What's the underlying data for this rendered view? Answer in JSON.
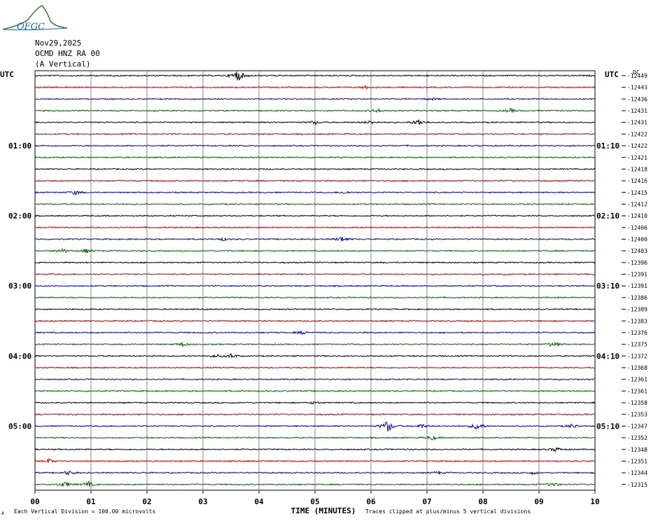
{
  "header": {
    "date": "Nov29,2025",
    "station": "OCMD HNZ RA 00",
    "component": "(A Vertical)",
    "logo_text": "OFGC"
  },
  "chart_data": {
    "type": "line",
    "title": "",
    "xlabel": "TIME (MINUTES)",
    "x_ticks": [
      "00",
      "01",
      "02",
      "03",
      "04",
      "05",
      "06",
      "07",
      "08",
      "09",
      "10"
    ],
    "xlim": [
      0,
      10
    ],
    "left_axis_label": "UTC",
    "right_axis_label": "UTC",
    "left_time_labels": [
      {
        "row": 6,
        "label": "01:00"
      },
      {
        "row": 12,
        "label": "02:00"
      },
      {
        "row": 18,
        "label": "03:00"
      },
      {
        "row": 24,
        "label": "04:00"
      },
      {
        "row": 30,
        "label": "05:00"
      }
    ],
    "right_time_labels": [
      {
        "row": 6,
        "label": "01:10"
      },
      {
        "row": 12,
        "label": "02:10"
      },
      {
        "row": 18,
        "label": "03:10"
      },
      {
        "row": 24,
        "label": "04:10"
      },
      {
        "row": 30,
        "label": "05:10"
      }
    ],
    "right_top_label": "DC",
    "trace_colors": [
      "#000000",
      "#cc0000",
      "#0000cc",
      "#006600"
    ],
    "trace_dc_values": [
      "-12449",
      "-12443",
      "-12436",
      "-12431",
      "-12431",
      "-12422",
      "-12422",
      "-12421",
      "-12418",
      "-12416",
      "-12415",
      "-12412",
      "-12410",
      "-12406",
      "-12400",
      "-12403",
      "-12396",
      "-12391",
      "-12391",
      "-12386",
      "-12389",
      "-12383",
      "-12376",
      "-12375",
      "-12372",
      "-12368",
      "-12361",
      "-12361",
      "-12358",
      "-12353",
      "-12347",
      "-12352",
      "-12348",
      "-12351",
      "-12344",
      "-12315"
    ],
    "events": [
      {
        "row": 0,
        "minute": 3.62,
        "amp": 9
      },
      {
        "row": 1,
        "minute": 5.9,
        "amp": 2
      },
      {
        "row": 2,
        "minute": 7.1,
        "amp": 1.5
      },
      {
        "row": 3,
        "minute": 6.1,
        "amp": 3
      },
      {
        "row": 3,
        "minute": 8.5,
        "amp": 2.5
      },
      {
        "row": 4,
        "minute": 5.0,
        "amp": 2.5
      },
      {
        "row": 4,
        "minute": 6.0,
        "amp": 2.5
      },
      {
        "row": 4,
        "minute": 6.85,
        "amp": 5
      },
      {
        "row": 10,
        "minute": 0.72,
        "amp": 3
      },
      {
        "row": 10,
        "minute": 5.55,
        "amp": 2
      },
      {
        "row": 14,
        "minute": 3.35,
        "amp": 2
      },
      {
        "row": 14,
        "minute": 5.48,
        "amp": 4
      },
      {
        "row": 15,
        "minute": 0.5,
        "amp": 3
      },
      {
        "row": 15,
        "minute": 0.9,
        "amp": 3
      },
      {
        "row": 22,
        "minute": 4.8,
        "amp": 2.5
      },
      {
        "row": 23,
        "minute": 2.65,
        "amp": 3
      },
      {
        "row": 23,
        "minute": 9.25,
        "amp": 4
      },
      {
        "row": 24,
        "minute": 3.2,
        "amp": 2
      },
      {
        "row": 24,
        "minute": 3.5,
        "amp": 3
      },
      {
        "row": 28,
        "minute": 5.0,
        "amp": 2
      },
      {
        "row": 30,
        "minute": 6.3,
        "amp": 9
      },
      {
        "row": 30,
        "minute": 6.9,
        "amp": 3
      },
      {
        "row": 30,
        "minute": 7.9,
        "amp": 6
      },
      {
        "row": 30,
        "minute": 9.6,
        "amp": 3
      },
      {
        "row": 31,
        "minute": 7.1,
        "amp": 3
      },
      {
        "row": 32,
        "minute": 9.3,
        "amp": 3
      },
      {
        "row": 33,
        "minute": 0.25,
        "amp": 3
      },
      {
        "row": 34,
        "minute": 0.6,
        "amp": 3
      },
      {
        "row": 34,
        "minute": 7.2,
        "amp": 2
      },
      {
        "row": 34,
        "minute": 8.9,
        "amp": 2
      },
      {
        "row": 35,
        "minute": 0.55,
        "amp": 4
      },
      {
        "row": 35,
        "minute": 0.95,
        "amp": 4
      },
      {
        "row": 35,
        "minute": 9.25,
        "amp": 3
      }
    ],
    "grid": true
  },
  "footer": {
    "left_note": "Each Vertical Division =  100.00 microvolts",
    "right_note": "Traces clipped at plus/minus 5 vertical divisions",
    "left_mark": "A"
  }
}
